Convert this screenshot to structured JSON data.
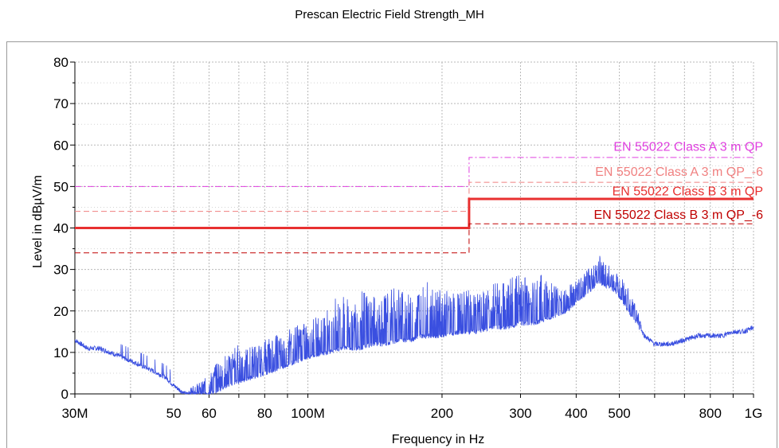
{
  "chart_data": {
    "type": "line",
    "title": "Prescan Electric Field Strength_MH",
    "xlabel": "Frequency in Hz",
    "ylabel": "Level in dBµV/m",
    "x_scale": "log",
    "xlim": [
      30,
      1000
    ],
    "ylim": [
      0,
      80
    ],
    "grid": true,
    "y_ticks": [
      "0",
      "10",
      "20",
      "30",
      "40",
      "50",
      "60",
      "70",
      "80"
    ],
    "y_tick_values": [
      0,
      10,
      20,
      30,
      40,
      50,
      60,
      70,
      80
    ],
    "x_ticks": [
      {
        "value": 30,
        "label": "30M"
      },
      {
        "value": 50,
        "label": "50"
      },
      {
        "value": 60,
        "label": "60"
      },
      {
        "value": 80,
        "label": "80"
      },
      {
        "value": 100,
        "label": "100M"
      },
      {
        "value": 200,
        "label": "200"
      },
      {
        "value": 300,
        "label": "300"
      },
      {
        "value": 400,
        "label": "400"
      },
      {
        "value": 500,
        "label": "500"
      },
      {
        "value": 800,
        "label": "800"
      },
      {
        "value": 1000,
        "label": "1G"
      }
    ],
    "x_grid_values": [
      30,
      40,
      50,
      60,
      70,
      80,
      90,
      100,
      200,
      300,
      400,
      500,
      600,
      700,
      800,
      900,
      1000
    ],
    "limit_lines": [
      {
        "name": "EN 55022 Class A 3 m QP",
        "color": "#e040e0",
        "style": "dashdot",
        "width": 1,
        "points": [
          [
            30,
            50
          ],
          [
            230,
            50
          ],
          [
            230,
            57
          ],
          [
            1000,
            57
          ]
        ]
      },
      {
        "name": "EN 55022 Class A 3 m QP_-6",
        "color": "#f08080",
        "style": "dashed",
        "width": 1,
        "points": [
          [
            30,
            44
          ],
          [
            230,
            44
          ],
          [
            230,
            51
          ],
          [
            1000,
            51
          ]
        ]
      },
      {
        "name": "EN 55022 Class B 3 m QP",
        "color": "#e83030",
        "style": "solid",
        "width": 3,
        "points": [
          [
            30,
            40
          ],
          [
            230,
            40
          ],
          [
            230,
            47
          ],
          [
            1000,
            47
          ]
        ]
      },
      {
        "name": "EN 55022 Class B 3 m QP_-6",
        "color": "#c00000",
        "style": "dashed",
        "width": 1,
        "points": [
          [
            30,
            34
          ],
          [
            230,
            34
          ],
          [
            230,
            41
          ],
          [
            1000,
            41
          ]
        ]
      }
    ],
    "series": [
      {
        "color": "#3a4fe0",
        "envelope": [
          [
            30,
            13
          ],
          [
            32,
            11
          ],
          [
            34,
            11
          ],
          [
            36,
            10
          ],
          [
            38,
            9
          ],
          [
            40,
            8
          ],
          [
            42,
            7
          ],
          [
            44,
            6
          ],
          [
            46,
            5
          ],
          [
            48,
            4
          ],
          [
            50,
            2
          ],
          [
            53,
            0
          ],
          [
            56,
            0
          ],
          [
            60,
            0
          ],
          [
            63,
            1
          ],
          [
            66,
            2
          ],
          [
            70,
            3
          ],
          [
            75,
            4
          ],
          [
            80,
            5
          ],
          [
            85,
            6
          ],
          [
            90,
            7
          ],
          [
            95,
            8
          ],
          [
            100,
            9
          ],
          [
            110,
            10
          ],
          [
            120,
            11
          ],
          [
            130,
            11
          ],
          [
            140,
            12
          ],
          [
            150,
            12
          ],
          [
            160,
            13
          ],
          [
            170,
            13
          ],
          [
            180,
            14
          ],
          [
            190,
            14
          ],
          [
            200,
            14
          ],
          [
            220,
            15
          ],
          [
            240,
            15
          ],
          [
            260,
            16
          ],
          [
            280,
            16
          ],
          [
            300,
            17
          ],
          [
            320,
            17
          ],
          [
            340,
            18
          ],
          [
            360,
            19
          ],
          [
            380,
            20
          ],
          [
            400,
            22
          ],
          [
            420,
            24
          ],
          [
            440,
            26
          ],
          [
            450,
            27
          ],
          [
            470,
            26
          ],
          [
            490,
            25
          ],
          [
            510,
            22
          ],
          [
            540,
            18
          ],
          [
            570,
            14
          ],
          [
            600,
            12
          ],
          [
            650,
            12
          ],
          [
            700,
            13
          ],
          [
            750,
            14
          ],
          [
            800,
            14
          ],
          [
            850,
            14
          ],
          [
            900,
            15
          ],
          [
            950,
            15
          ],
          [
            1000,
            16
          ]
        ],
        "peaks": [
          [
            55,
            2
          ],
          [
            58,
            3
          ],
          [
            61,
            6
          ],
          [
            64,
            9
          ],
          [
            67,
            11
          ],
          [
            70,
            12
          ],
          [
            73,
            11
          ],
          [
            76,
            12
          ],
          [
            80,
            13
          ],
          [
            84,
            14
          ],
          [
            88,
            15
          ],
          [
            92,
            16
          ],
          [
            96,
            17
          ],
          [
            100,
            17
          ],
          [
            105,
            19
          ],
          [
            110,
            21
          ],
          [
            115,
            23
          ],
          [
            120,
            24
          ],
          [
            126,
            22
          ],
          [
            132,
            25
          ],
          [
            138,
            24
          ],
          [
            145,
            23
          ],
          [
            152,
            25
          ],
          [
            160,
            26
          ],
          [
            168,
            24
          ],
          [
            176,
            25
          ],
          [
            185,
            27
          ],
          [
            195,
            26
          ],
          [
            205,
            25
          ],
          [
            215,
            24
          ],
          [
            225,
            25
          ],
          [
            235,
            25
          ],
          [
            245,
            26
          ],
          [
            255,
            26
          ],
          [
            265,
            27
          ],
          [
            275,
            27
          ],
          [
            285,
            28
          ],
          [
            295,
            29
          ],
          [
            305,
            29
          ],
          [
            315,
            28
          ],
          [
            325,
            28
          ],
          [
            335,
            29
          ],
          [
            345,
            27
          ],
          [
            355,
            27
          ],
          [
            365,
            26
          ],
          [
            375,
            26
          ],
          [
            385,
            27
          ],
          [
            395,
            27
          ],
          [
            405,
            28
          ],
          [
            415,
            29
          ],
          [
            425,
            30
          ],
          [
            435,
            31
          ],
          [
            445,
            33
          ],
          [
            455,
            34
          ],
          [
            465,
            32
          ],
          [
            475,
            31
          ],
          [
            485,
            30
          ],
          [
            495,
            29
          ],
          [
            505,
            29
          ],
          [
            515,
            27
          ],
          [
            525,
            25
          ],
          [
            535,
            23
          ],
          [
            545,
            21
          ],
          [
            555,
            19
          ]
        ]
      }
    ],
    "legend_placement": "inline-right"
  }
}
